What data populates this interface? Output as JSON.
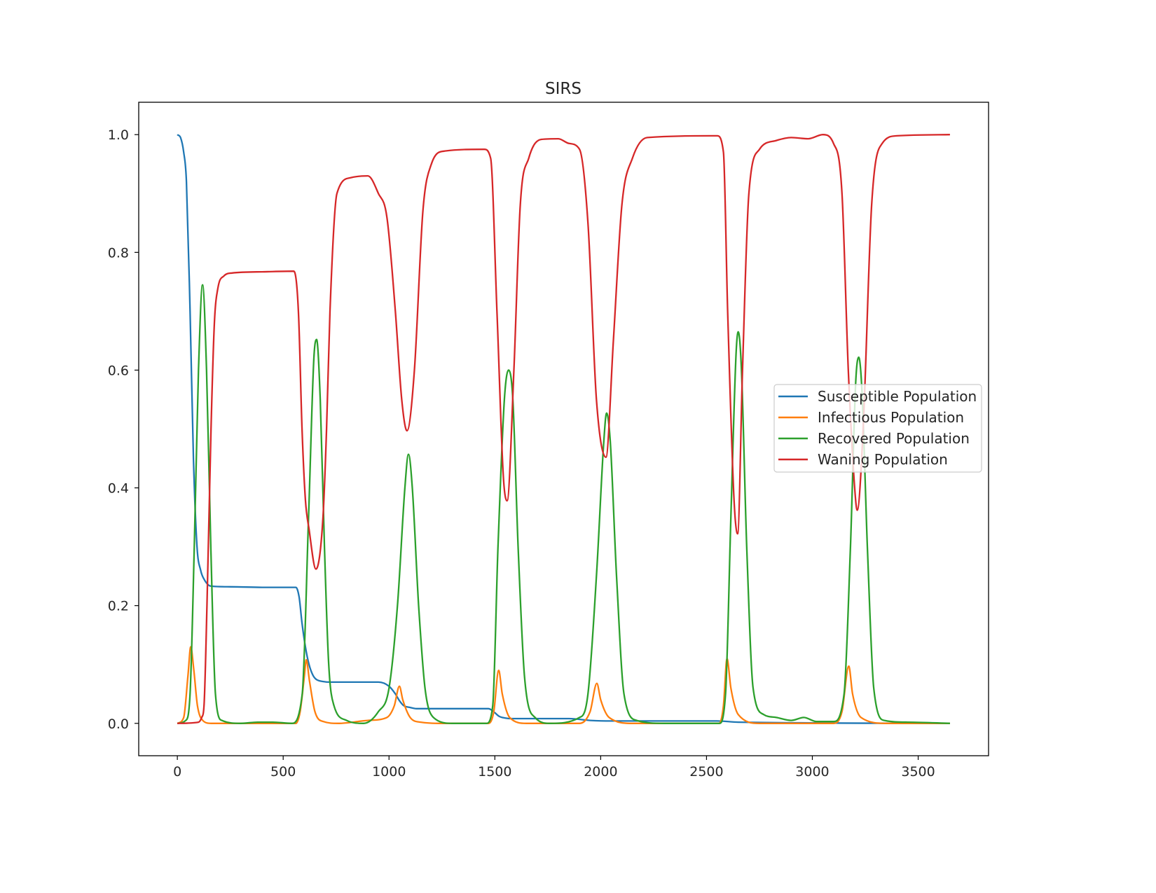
{
  "chart_data": {
    "type": "line",
    "title": "SIRS",
    "xlabel": "",
    "ylabel": "",
    "xlim": [
      -182.5,
      3832.5
    ],
    "ylim": [
      -0.055,
      1.055
    ],
    "xticks": [
      0,
      500,
      1000,
      1500,
      2000,
      2500,
      3000,
      3500
    ],
    "xtick_labels": [
      "0",
      "500",
      "1000",
      "1500",
      "2000",
      "2500",
      "3000",
      "3500"
    ],
    "yticks": [
      0.0,
      0.2,
      0.4,
      0.6,
      0.8,
      1.0
    ],
    "ytick_labels": [
      "0.0",
      "0.2",
      "0.4",
      "0.6",
      "0.8",
      "1.0"
    ],
    "grid": false,
    "legend_position": "center-right",
    "series": [
      {
        "name": "Susceptible Population",
        "color": "#1f77b4",
        "x": [
          0,
          15,
          30,
          43,
          60,
          76,
          93,
          110,
          126,
          159,
          250,
          400,
          560,
          575,
          589,
          605,
          622,
          640,
          655,
          690,
          721,
          950,
          1000,
          1030,
          1050,
          1070,
          1100,
          1130,
          1470,
          1500,
          1520,
          1550,
          1580,
          1850,
          1950,
          2050,
          2550,
          2650,
          3650
        ],
        "y": [
          1.0,
          0.995,
          0.97,
          0.92,
          0.7,
          0.45,
          0.3,
          0.26,
          0.245,
          0.233,
          0.232,
          0.231,
          0.231,
          0.215,
          0.17,
          0.13,
          0.1,
          0.082,
          0.075,
          0.071,
          0.07,
          0.07,
          0.063,
          0.05,
          0.038,
          0.03,
          0.027,
          0.025,
          0.025,
          0.018,
          0.012,
          0.009,
          0.008,
          0.008,
          0.005,
          0.004,
          0.004,
          0.002,
          0.0
        ]
      },
      {
        "name": "Infectious Population",
        "color": "#ff7f0e",
        "x": [
          0,
          30,
          50,
          63,
          78,
          95,
          120,
          160,
          560,
          580,
          600,
          609,
          625,
          650,
          690,
          760,
          900,
          990,
          1025,
          1049,
          1065,
          1100,
          1150,
          1250,
          1470,
          1495,
          1518,
          1535,
          1570,
          1650,
          1900,
          1950,
          1982,
          2000,
          2040,
          2150,
          2560,
          2580,
          2597,
          2615,
          2650,
          2750,
          3100,
          3140,
          3172,
          3190,
          3230,
          3350,
          3650
        ],
        "y": [
          0,
          0.01,
          0.08,
          0.13,
          0.09,
          0.03,
          0.005,
          0,
          0,
          0.02,
          0.08,
          0.108,
          0.07,
          0.02,
          0.003,
          0,
          0.005,
          0.01,
          0.03,
          0.063,
          0.04,
          0.01,
          0.002,
          0,
          0,
          0.02,
          0.09,
          0.05,
          0.01,
          0,
          0,
          0.02,
          0.068,
          0.04,
          0.01,
          0,
          0,
          0.03,
          0.11,
          0.06,
          0.015,
          0,
          0,
          0.02,
          0.097,
          0.05,
          0.01,
          0,
          0
        ]
      },
      {
        "name": "Recovered Population",
        "color": "#2ca02c",
        "x": [
          0,
          40,
          60,
          80,
          100,
          119,
          138,
          158,
          180,
          210,
          300,
          380,
          450,
          540,
          590,
          620,
          645,
          658,
          675,
          695,
          715,
          740,
          800,
          880,
          950,
          1000,
          1040,
          1075,
          1092,
          1110,
          1140,
          1170,
          1210,
          1300,
          1460,
          1490,
          1515,
          1545,
          1565,
          1585,
          1610,
          1640,
          1690,
          1760,
          1900,
          1940,
          1980,
          2015,
          2028,
          2045,
          2075,
          2110,
          2170,
          2300,
          2560,
          2590,
          2615,
          2640,
          2650,
          2665,
          2690,
          2720,
          2770,
          2830,
          2900,
          2960,
          3020,
          3100,
          3150,
          3180,
          3205,
          3219,
          3235,
          3260,
          3290,
          3340,
          3450,
          3650
        ],
        "y": [
          0,
          0.005,
          0.05,
          0.3,
          0.6,
          0.745,
          0.6,
          0.3,
          0.05,
          0.005,
          0,
          0.002,
          0.002,
          0,
          0.05,
          0.35,
          0.62,
          0.652,
          0.55,
          0.3,
          0.1,
          0.03,
          0.005,
          0,
          0.02,
          0.06,
          0.2,
          0.4,
          0.457,
          0.4,
          0.2,
          0.06,
          0.01,
          0,
          0,
          0.03,
          0.3,
          0.55,
          0.6,
          0.55,
          0.3,
          0.08,
          0.01,
          0,
          0.01,
          0.05,
          0.25,
          0.48,
          0.527,
          0.48,
          0.25,
          0.05,
          0.005,
          0,
          0,
          0.05,
          0.35,
          0.63,
          0.665,
          0.6,
          0.3,
          0.06,
          0.015,
          0.01,
          0.005,
          0.01,
          0.003,
          0.003,
          0.05,
          0.3,
          0.58,
          0.622,
          0.56,
          0.3,
          0.06,
          0.005,
          0.002,
          0
        ]
      },
      {
        "name": "Waning Population",
        "color": "#d62728",
        "x": [
          0,
          100,
          115,
          126,
          140,
          159,
          175,
          192,
          220,
          258,
          400,
          550,
          572,
          589,
          605,
          622,
          655,
          688,
          705,
          721,
          754,
          820,
          900,
          950,
          990,
          1030,
          1060,
          1085,
          1120,
          1160,
          1200,
          1260,
          1450,
          1480,
          1510,
          1540,
          1558,
          1590,
          1620,
          1660,
          1720,
          1800,
          1850,
          1900,
          1940,
          1980,
          2025,
          2060,
          2100,
          2150,
          2220,
          2550,
          2580,
          2600,
          2630,
          2647,
          2670,
          2700,
          2750,
          2830,
          2900,
          2980,
          3050,
          3100,
          3140,
          3170,
          3200,
          3212,
          3240,
          3280,
          3330,
          3400,
          3650
        ],
        "y": [
          0,
          0.002,
          0.01,
          0.03,
          0.2,
          0.5,
          0.68,
          0.74,
          0.76,
          0.765,
          0.767,
          0.768,
          0.7,
          0.5,
          0.38,
          0.33,
          0.262,
          0.35,
          0.5,
          0.7,
          0.9,
          0.927,
          0.93,
          0.9,
          0.86,
          0.7,
          0.55,
          0.497,
          0.6,
          0.87,
          0.95,
          0.972,
          0.975,
          0.96,
          0.7,
          0.42,
          0.378,
          0.6,
          0.88,
          0.96,
          0.992,
          0.993,
          0.985,
          0.975,
          0.85,
          0.55,
          0.452,
          0.65,
          0.88,
          0.96,
          0.995,
          0.998,
          0.97,
          0.7,
          0.38,
          0.322,
          0.6,
          0.9,
          0.975,
          0.99,
          0.995,
          0.993,
          1.0,
          0.985,
          0.9,
          0.6,
          0.4,
          0.362,
          0.5,
          0.88,
          0.985,
          0.998,
          1.0
        ]
      }
    ]
  }
}
